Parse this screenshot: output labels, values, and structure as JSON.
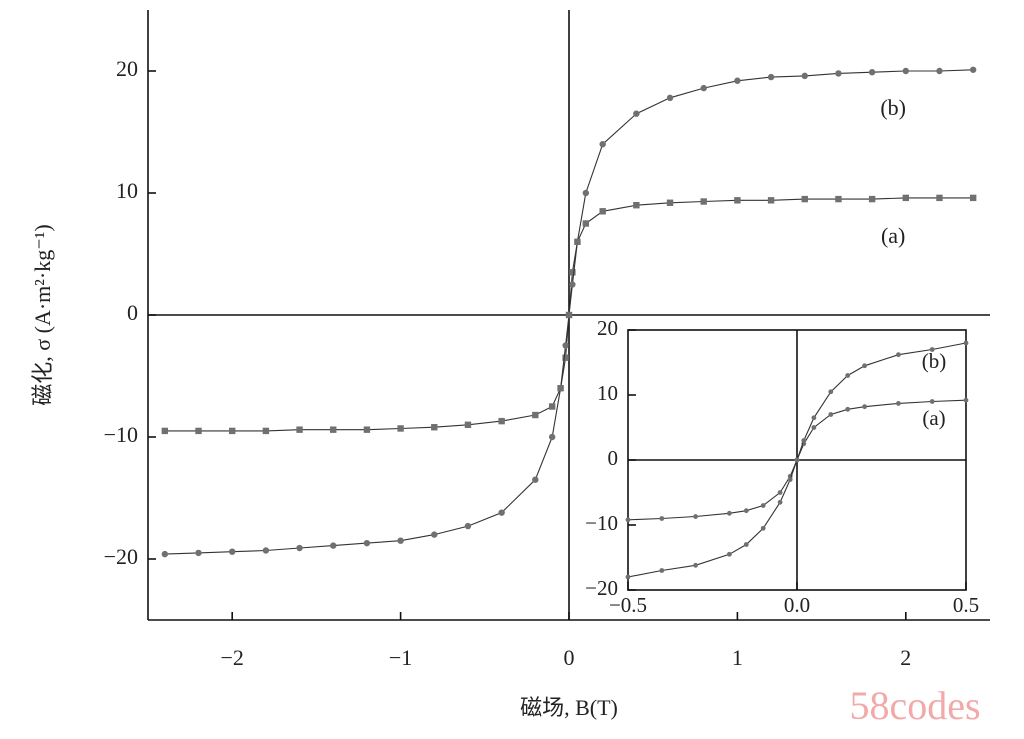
{
  "chart_data": [
    {
      "type": "line",
      "xlabel": "磁场, B(T)",
      "ylabel": "磁化, σ (A·m²·kg⁻¹)",
      "xlim": [
        -2.5,
        2.5
      ],
      "ylim": [
        -25,
        25
      ],
      "xticks": [
        {
          "value": -2,
          "label": "−2"
        },
        {
          "value": -1,
          "label": "−1"
        },
        0,
        1,
        2
      ],
      "yticks": [
        {
          "value": -20,
          "label": "−20"
        },
        {
          "value": -10,
          "label": "−10"
        },
        0,
        10,
        20
      ],
      "series": [
        {
          "name": "(a)",
          "color": "#707070",
          "marker": "square",
          "x": [
            -2.4,
            -2.2,
            -2.0,
            -1.8,
            -1.6,
            -1.4,
            -1.2,
            -1.0,
            -0.8,
            -0.6,
            -0.4,
            -0.2,
            -0.1,
            -0.05,
            -0.02,
            0,
            0.02,
            0.05,
            0.1,
            0.2,
            0.4,
            0.6,
            0.8,
            1.0,
            1.2,
            1.4,
            1.6,
            1.8,
            2.0,
            2.2,
            2.4
          ],
          "values": [
            -9.5,
            -9.5,
            -9.5,
            -9.5,
            -9.4,
            -9.4,
            -9.4,
            -9.3,
            -9.2,
            -9.0,
            -8.7,
            -8.2,
            -7.5,
            -6,
            -3.5,
            0,
            3.5,
            6,
            7.5,
            8.5,
            9.0,
            9.2,
            9.3,
            9.4,
            9.4,
            9.5,
            9.5,
            9.5,
            9.6,
            9.6,
            9.6
          ]
        },
        {
          "name": "(b)",
          "color": "#707070",
          "marker": "circle",
          "x": [
            -2.4,
            -2.2,
            -2.0,
            -1.8,
            -1.6,
            -1.4,
            -1.2,
            -1.0,
            -0.8,
            -0.6,
            -0.4,
            -0.2,
            -0.1,
            -0.05,
            -0.02,
            0,
            0.02,
            0.05,
            0.1,
            0.2,
            0.4,
            0.6,
            0.8,
            1.0,
            1.2,
            1.4,
            1.6,
            1.8,
            2.0,
            2.2,
            2.4
          ],
          "values": [
            -19.6,
            -19.5,
            -19.4,
            -19.3,
            -19.1,
            -18.9,
            -18.7,
            -18.5,
            -18.0,
            -17.3,
            -16.2,
            -13.5,
            -10,
            -6,
            -2.5,
            0,
            2.5,
            6,
            10,
            14,
            16.5,
            17.8,
            18.6,
            19.2,
            19.5,
            19.6,
            19.8,
            19.9,
            20.0,
            20.0,
            20.1
          ]
        }
      ]
    },
    {
      "type": "line",
      "xlim": [
        -0.5,
        0.5
      ],
      "ylim": [
        -20,
        20
      ],
      "xticks": [
        {
          "value": -0.5,
          "label": "−0.5"
        },
        {
          "value": 0,
          "label": "0.0"
        },
        0.5
      ],
      "yticks": [
        {
          "value": -20,
          "label": "−20"
        },
        {
          "value": -10,
          "label": "−10"
        },
        0,
        10,
        20
      ],
      "series": [
        {
          "name": "(a)",
          "color": "#707070",
          "marker": "circle",
          "x": [
            -0.5,
            -0.4,
            -0.3,
            -0.2,
            -0.15,
            -0.1,
            -0.05,
            -0.02,
            0,
            0.02,
            0.05,
            0.1,
            0.15,
            0.2,
            0.3,
            0.4,
            0.5
          ],
          "values": [
            -9.2,
            -9.0,
            -8.7,
            -8.2,
            -7.8,
            -7.0,
            -5,
            -2.5,
            0,
            2.5,
            5,
            7.0,
            7.8,
            8.2,
            8.7,
            9.0,
            9.2
          ]
        },
        {
          "name": "(b)",
          "color": "#707070",
          "marker": "circle",
          "x": [
            -0.5,
            -0.4,
            -0.3,
            -0.2,
            -0.15,
            -0.1,
            -0.05,
            -0.02,
            0,
            0.02,
            0.05,
            0.1,
            0.15,
            0.2,
            0.3,
            0.4,
            0.5
          ],
          "values": [
            -18.0,
            -17.0,
            -16.2,
            -14.5,
            -13.0,
            -10.5,
            -6.5,
            -3,
            0,
            3,
            6.5,
            10.5,
            13,
            14.5,
            16.2,
            17.0,
            18.0
          ]
        }
      ]
    }
  ],
  "watermark": "58codes"
}
